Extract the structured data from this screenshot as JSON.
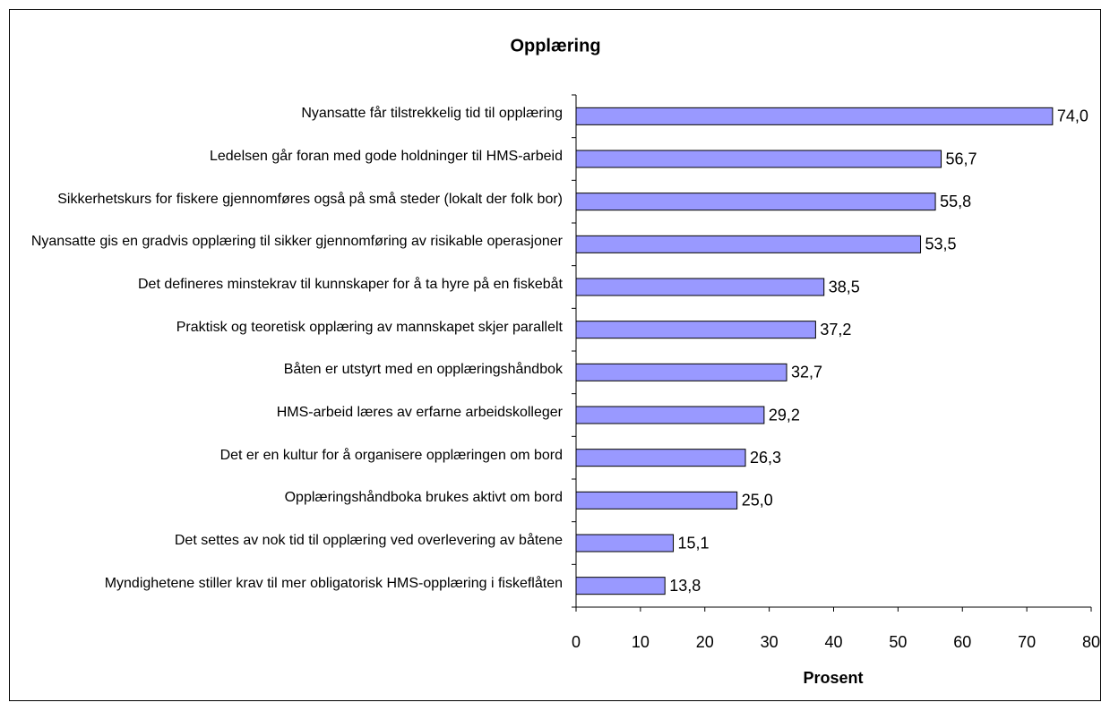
{
  "chart_data": {
    "type": "bar",
    "orientation": "horizontal",
    "title": "Opplæring",
    "xlabel": "Prosent",
    "categories": [
      "Nyansatte får tilstrekkelig tid til opplæring",
      "Ledelsen går foran med gode holdninger til HMS-arbeid",
      "Sikkerhetskurs for fiskere gjennomføres også på små steder (lokalt der folk bor)",
      "Nyansatte gis en gradvis opplæring til sikker gjennomføring av risikable operasjoner",
      "Det defineres minstekrav til kunnskaper for å ta hyre på en fiskebåt",
      "Praktisk og teoretisk opplæring av mannskapet skjer parallelt",
      "Båten er utstyrt med en opplæringshåndbok",
      "HMS-arbeid læres av erfarne arbeidskolleger",
      "Det er en kultur for å organisere opplæringen om bord",
      "Opplæringshåndboka brukes aktivt om bord",
      "Det settes av nok tid til opplæring ved overlevering av båtene",
      "Myndighetene stiller krav til mer obligatorisk HMS-opplæring i fiskeflåten"
    ],
    "values": [
      74.0,
      56.7,
      55.8,
      53.5,
      38.5,
      37.2,
      32.7,
      29.2,
      26.3,
      25.0,
      15.1,
      13.8
    ],
    "value_labels": [
      "74,0",
      "56,7",
      "55,8",
      "53,5",
      "38,5",
      "37,2",
      "32,7",
      "29,2",
      "26,3",
      "25,0",
      "15,1",
      "13,8"
    ],
    "color": "#9999ff",
    "xlim": [
      0,
      80
    ],
    "xticks": [
      0,
      10,
      20,
      30,
      40,
      50,
      60,
      70,
      80
    ]
  }
}
